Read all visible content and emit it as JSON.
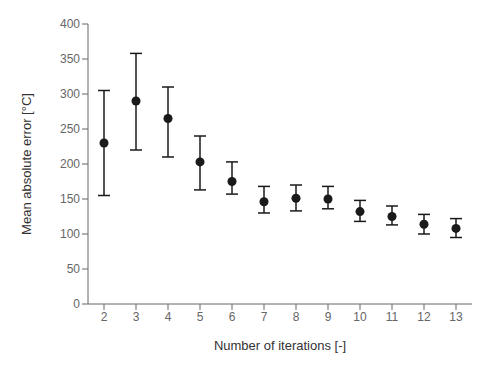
{
  "chart_data": {
    "type": "scatter",
    "xlabel": "Number of iterations [-]",
    "ylabel": "Mean absolute error [°C]",
    "x": [
      2,
      3,
      4,
      5,
      6,
      7,
      8,
      9,
      10,
      11,
      12,
      13
    ],
    "values": [
      230,
      290,
      265,
      203,
      175,
      146,
      151,
      150,
      132,
      125,
      114,
      108
    ],
    "lower_errors": [
      75,
      70,
      55,
      40,
      18,
      16,
      18,
      14,
      14,
      12,
      14,
      13
    ],
    "upper_errors": [
      75,
      68,
      45,
      37,
      28,
      22,
      19,
      18,
      16,
      15,
      14,
      14
    ],
    "color": "#1a1a1a",
    "marker": "circle",
    "xlim": [
      1.5,
      13.5
    ],
    "ylim": [
      0,
      400
    ],
    "xticks": [
      2,
      3,
      4,
      5,
      6,
      7,
      8,
      9,
      10,
      11,
      12,
      13
    ],
    "yticks": [
      0,
      50,
      100,
      150,
      200,
      250,
      300,
      350,
      400
    ]
  }
}
